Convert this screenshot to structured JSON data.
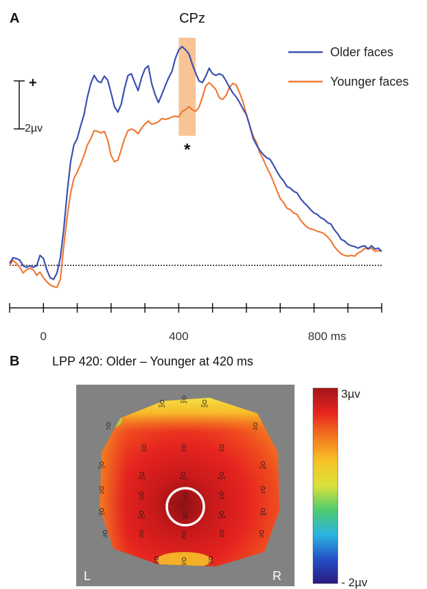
{
  "chart_data": [
    {
      "panel_label": "A",
      "type": "line",
      "title": "CPz",
      "xlabel": "",
      "ylabel": "",
      "xlim": [
        -100,
        1000
      ],
      "x_ticks": [
        0,
        400,
        800
      ],
      "x_tick_labels": [
        "0",
        "400",
        "800 ms"
      ],
      "minor_tick_step": 100,
      "scale_bar": {
        "label": "2µv",
        "polarity_marker": "+",
        "value_uv": 2
      },
      "highlight_window": {
        "x_start": 400,
        "x_end": 450,
        "color": "#f6b57c"
      },
      "significance_marker": "*",
      "baseline": "dotted",
      "legend": {
        "placement": "top-right"
      },
      "series": [
        {
          "name": "Older faces",
          "color": "#3b4fb0",
          "x": [
            -100,
            -90,
            -80,
            -70,
            -60,
            -50,
            -40,
            -30,
            -20,
            -10,
            0,
            10,
            20,
            30,
            40,
            50,
            60,
            70,
            80,
            90,
            100,
            110,
            120,
            130,
            140,
            150,
            160,
            170,
            180,
            190,
            200,
            210,
            220,
            230,
            240,
            250,
            260,
            270,
            280,
            290,
            300,
            310,
            320,
            330,
            340,
            350,
            360,
            370,
            380,
            390,
            400,
            410,
            420,
            430,
            440,
            450,
            460,
            470,
            480,
            490,
            500,
            510,
            520,
            530,
            540,
            550,
            560,
            570,
            580,
            590,
            600,
            610,
            620,
            630,
            640,
            650,
            660,
            670,
            680,
            690,
            700,
            710,
            720,
            730,
            740,
            750,
            760,
            770,
            780,
            790,
            800,
            810,
            820,
            830,
            840,
            850,
            860,
            870,
            880,
            890,
            900,
            910,
            920,
            930,
            940,
            950,
            960,
            970,
            980,
            990,
            1000
          ],
          "y": [
            0.1,
            0.3,
            0.3,
            0.2,
            0.0,
            -0.1,
            0.0,
            -0.1,
            0.0,
            0.4,
            0.3,
            -0.2,
            -0.5,
            -0.6,
            -0.3,
            0.3,
            1.5,
            3.0,
            4.3,
            5.0,
            5.3,
            5.8,
            6.3,
            7.0,
            7.6,
            7.9,
            7.7,
            7.6,
            7.9,
            7.7,
            7.2,
            6.6,
            6.4,
            6.7,
            7.4,
            7.9,
            8.0,
            7.6,
            7.3,
            7.8,
            8.2,
            8.3,
            7.6,
            7.1,
            6.8,
            7.1,
            7.5,
            7.8,
            8.1,
            8.6,
            9.0,
            9.1,
            9.0,
            8.8,
            8.4,
            8.0,
            7.7,
            7.6,
            7.9,
            8.2,
            8.0,
            7.9,
            8.0,
            7.9,
            7.7,
            7.4,
            7.2,
            7.0,
            6.8,
            6.5,
            6.3,
            5.8,
            5.3,
            5.0,
            4.8,
            4.6,
            4.5,
            4.4,
            4.2,
            3.9,
            3.7,
            3.5,
            3.3,
            3.2,
            3.1,
            3.0,
            2.8,
            2.6,
            2.5,
            2.3,
            2.2,
            2.1,
            2.0,
            1.9,
            1.8,
            1.7,
            1.5,
            1.3,
            1.1,
            1.0,
            0.9,
            0.8,
            0.8,
            0.7,
            0.8,
            0.8,
            0.7,
            0.8,
            0.7,
            0.7,
            0.6
          ]
        },
        {
          "name": "Younger faces",
          "color": "#ef7a36",
          "x": [
            -100,
            -90,
            -80,
            -70,
            -60,
            -50,
            -40,
            -30,
            -20,
            -10,
            0,
            10,
            20,
            30,
            40,
            50,
            60,
            70,
            80,
            90,
            100,
            110,
            120,
            130,
            140,
            150,
            160,
            170,
            180,
            190,
            200,
            210,
            220,
            230,
            240,
            250,
            260,
            270,
            280,
            290,
            300,
            310,
            320,
            330,
            340,
            350,
            360,
            370,
            380,
            390,
            400,
            410,
            420,
            430,
            440,
            450,
            460,
            470,
            480,
            490,
            500,
            510,
            520,
            530,
            540,
            550,
            560,
            570,
            580,
            590,
            600,
            610,
            620,
            630,
            640,
            650,
            660,
            670,
            680,
            690,
            700,
            710,
            720,
            730,
            740,
            750,
            760,
            770,
            780,
            790,
            800,
            810,
            820,
            830,
            840,
            850,
            860,
            870,
            880,
            890,
            900,
            910,
            920,
            930,
            940,
            950,
            960,
            970,
            980,
            990,
            1000
          ],
          "y": [
            0.0,
            0.2,
            0.1,
            -0.1,
            -0.3,
            -0.2,
            -0.1,
            -0.2,
            -0.4,
            -0.3,
            -0.5,
            -0.7,
            -0.8,
            -0.9,
            -0.9,
            -0.6,
            0.8,
            2.0,
            3.0,
            3.6,
            3.9,
            4.2,
            4.6,
            5.0,
            5.3,
            5.6,
            5.6,
            5.5,
            5.6,
            5.2,
            4.6,
            4.3,
            4.4,
            4.8,
            5.3,
            5.6,
            5.7,
            5.6,
            5.5,
            5.7,
            5.9,
            6.0,
            5.9,
            5.9,
            6.0,
            6.1,
            6.1,
            6.1,
            6.2,
            6.2,
            6.2,
            6.4,
            6.5,
            6.6,
            6.5,
            6.4,
            6.6,
            7.0,
            7.5,
            7.6,
            7.5,
            7.3,
            7.0,
            6.9,
            7.1,
            7.4,
            7.6,
            7.5,
            7.2,
            6.8,
            6.3,
            5.8,
            5.4,
            5.1,
            4.7,
            4.4,
            4.1,
            3.8,
            3.5,
            3.1,
            2.8,
            2.6,
            2.4,
            2.3,
            2.2,
            2.1,
            1.9,
            1.7,
            1.6,
            1.5,
            1.5,
            1.4,
            1.4,
            1.3,
            1.2,
            1.0,
            0.8,
            0.6,
            0.5,
            0.4,
            0.4,
            0.4,
            0.4,
            0.5,
            0.6,
            0.7,
            0.7,
            0.7,
            0.6,
            0.6,
            0.6
          ]
        }
      ]
    },
    {
      "panel_label": "B",
      "type": "heatmap",
      "title": "LPP 420: Older – Younger at 420 ms",
      "colorbar": {
        "max_label": "3µv",
        "min_label": "- 2µv",
        "range_uv": [
          -2,
          3
        ],
        "colors": [
          "#2a1b7e",
          "#2450c8",
          "#2ab5e0",
          "#4fca70",
          "#d8e23a",
          "#f7c326",
          "#f4781f",
          "#e5241f",
          "#a31418"
        ]
      },
      "background_color": "#828282",
      "side_labels": {
        "left": "L",
        "right": "R"
      },
      "highlighted_electrode": "CP1",
      "electrodes": [
        "FP1",
        "FPz",
        "FP2",
        "F7",
        "F8",
        "F3",
        "Fz",
        "F4",
        "FT7",
        "FT8",
        "FC3",
        "FCz",
        "FC4",
        "T3",
        "T4",
        "C3",
        "Cz",
        "C4",
        "TP7",
        "TP8",
        "CP3",
        "CP1",
        "CP4",
        "T5",
        "T6",
        "P3",
        "Pz",
        "P4",
        "O1",
        "Oz",
        "O2"
      ]
    }
  ]
}
